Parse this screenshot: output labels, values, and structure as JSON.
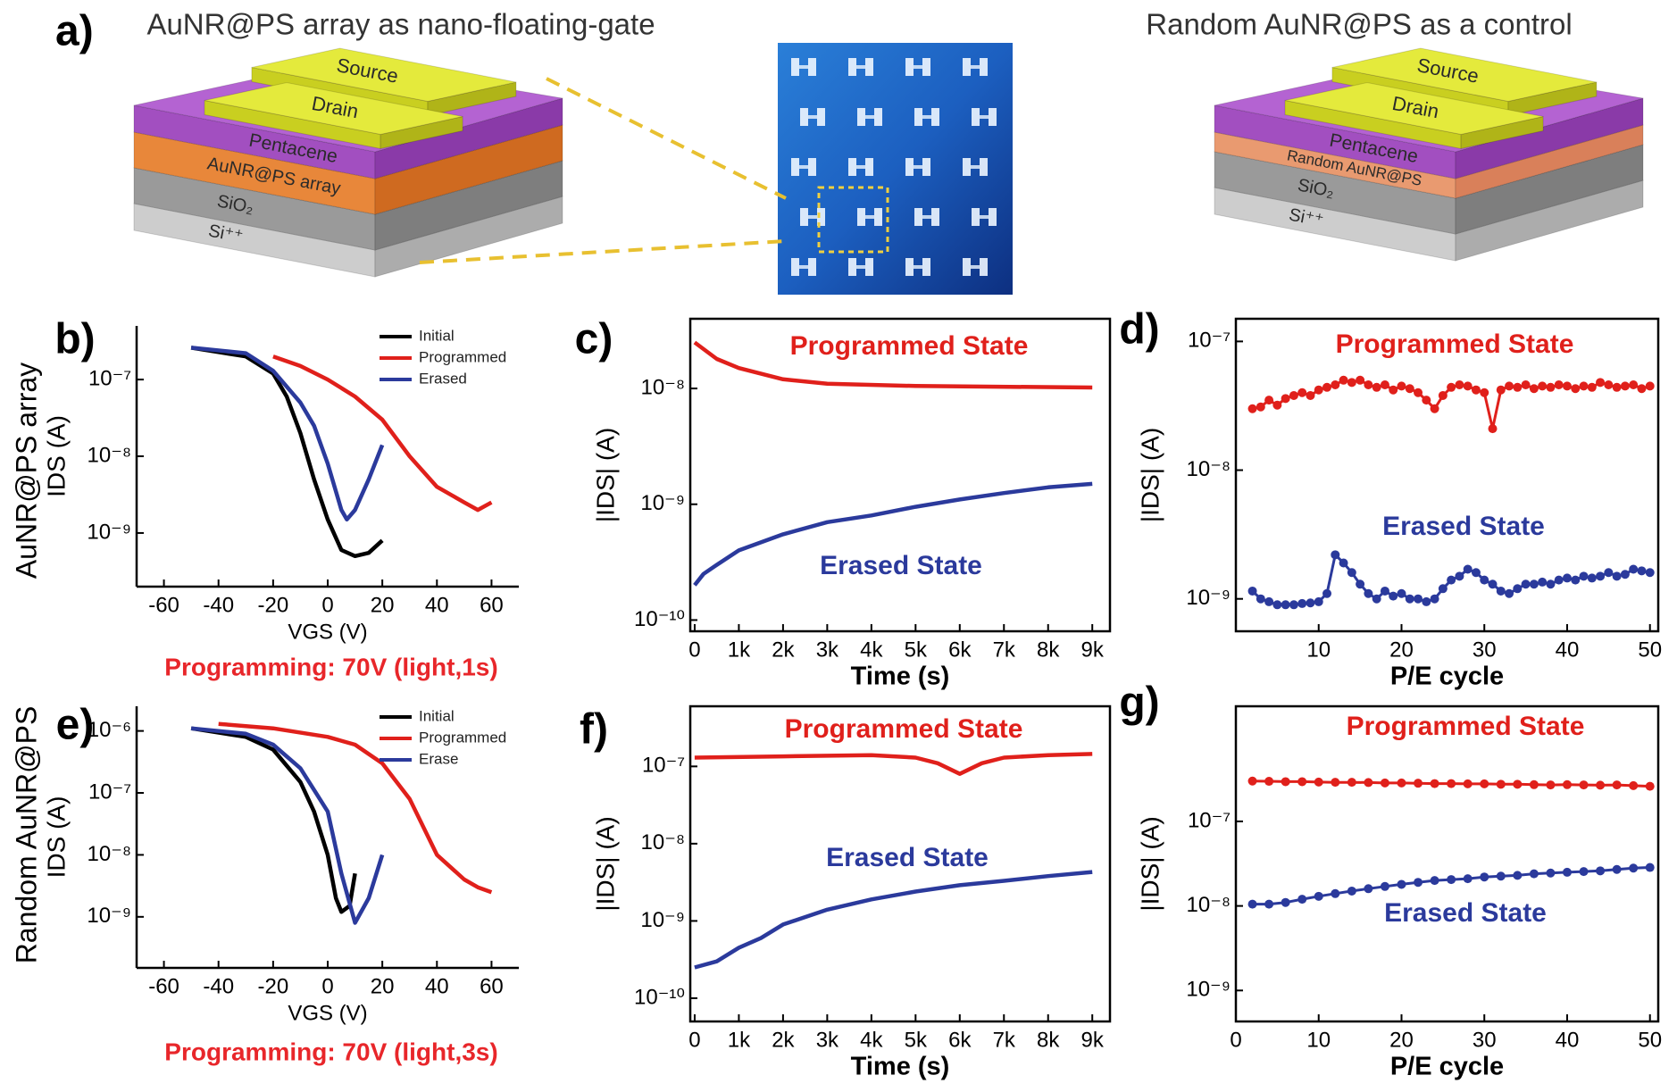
{
  "figure": {
    "panel": "a)",
    "titles": [
      "AuNR@PS array as nano-floating-gate",
      "Random AuNR@PS as a control"
    ],
    "devices": [
      {
        "layers": [
          "Source",
          "Drain",
          "Pentacene",
          "AuNR@PS array",
          "SiO₂",
          "Si⁺⁺"
        ]
      },
      {
        "layers": [
          "Source",
          "Drain",
          "Pentacene",
          "Random AuNR@PS",
          "SiO₂",
          "Si⁺⁺"
        ]
      }
    ],
    "row_labels": [
      "AuNR@PS array",
      "Random AuNR@PS"
    ]
  },
  "chart_data": [
    {
      "type": "line",
      "panel": "b)",
      "xlabel": "VGS (V)",
      "ylabel": "IDS (A)",
      "caption": "Programming: 70V (light,1s)",
      "log_y": true,
      "legend": "upper right",
      "frame": "axes",
      "xlim": [
        -70,
        70
      ],
      "ylim": [
        2e-10,
        5e-07
      ],
      "xticks": [
        -60,
        -40,
        -20,
        0,
        20,
        40,
        60
      ],
      "yticks": [
        {
          "value": 1e-09,
          "label": "10⁻⁹"
        },
        {
          "value": 1e-08,
          "label": "10⁻⁸"
        },
        {
          "value": 1e-07,
          "label": "10⁻⁷"
        }
      ],
      "series": [
        {
          "name": "Initial",
          "color": "#000000",
          "x": [
            -50,
            -30,
            -20,
            -15,
            -10,
            -5,
            0,
            5,
            10,
            15,
            20
          ],
          "values": [
            2.6e-07,
            2e-07,
            1.2e-07,
            6e-08,
            2e-08,
            5e-09,
            1.5e-09,
            6e-10,
            5e-10,
            5.5e-10,
            8e-10
          ]
        },
        {
          "name": "Programmed",
          "color": "#e0201b",
          "x": [
            -20,
            -10,
            0,
            10,
            20,
            30,
            40,
            50,
            55,
            60
          ],
          "values": [
            2e-07,
            1.5e-07,
            1e-07,
            6e-08,
            3e-08,
            1e-08,
            4e-09,
            2.5e-09,
            2e-09,
            2.5e-09
          ]
        },
        {
          "name": "Erased",
          "color": "#2b3a9c",
          "x": [
            -50,
            -30,
            -20,
            -10,
            -5,
            0,
            5,
            7,
            10,
            15,
            20
          ],
          "values": [
            2.6e-07,
            2.2e-07,
            1.3e-07,
            5e-08,
            2.5e-08,
            8e-09,
            2e-09,
            1.5e-09,
            2e-09,
            5e-09,
            1.4e-08
          ]
        }
      ]
    },
    {
      "type": "line",
      "panel": "c)",
      "xlabel": "Time (s)",
      "ylabel": "|IDS| (A)",
      "log_y": true,
      "frame": "full",
      "xlim": [
        -100,
        9400
      ],
      "ylim": [
        8e-11,
        4e-08
      ],
      "xticks": [
        0,
        {
          "value": 1000,
          "label": "1k"
        },
        {
          "value": 2000,
          "label": "2k"
        },
        {
          "value": 3000,
          "label": "3k"
        },
        {
          "value": 4000,
          "label": "4k"
        },
        {
          "value": 5000,
          "label": "5k"
        },
        {
          "value": 6000,
          "label": "6k"
        },
        {
          "value": 7000,
          "label": "7k"
        },
        {
          "value": 8000,
          "label": "8k"
        },
        {
          "value": 9000,
          "label": "9k"
        }
      ],
      "yticks": [
        {
          "value": 1e-10,
          "label": "10⁻¹⁰"
        },
        {
          "value": 1e-09,
          "label": "10⁻⁹"
        },
        {
          "value": 1e-08,
          "label": "10⁻⁸"
        }
      ],
      "series": [
        {
          "name": "Programmed State",
          "color": "#e0201b",
          "x": [
            0,
            500,
            1000,
            2000,
            3000,
            5000,
            9000
          ],
          "values": [
            2.5e-08,
            1.8e-08,
            1.5e-08,
            1.2e-08,
            1.1e-08,
            1.05e-08,
            1.02e-08
          ]
        },
        {
          "name": "Erased State",
          "color": "#2b3a9c",
          "x": [
            0,
            200,
            500,
            1000,
            2000,
            3000,
            4000,
            5000,
            6000,
            7000,
            8000,
            9000
          ],
          "values": [
            2e-10,
            2.5e-10,
            3e-10,
            4e-10,
            5.5e-10,
            7e-10,
            8e-10,
            9.5e-10,
            1.1e-09,
            1.25e-09,
            1.4e-09,
            1.5e-09
          ]
        }
      ]
    },
    {
      "type": "line",
      "panel": "d)",
      "xlabel": "P/E cycle",
      "ylabel": "|IDS| (A)",
      "log_y": true,
      "frame": "full",
      "markers": true,
      "xlim": [
        0,
        51
      ],
      "ylim": [
        5.6e-10,
        1.5e-07
      ],
      "xticks": [
        10,
        20,
        30,
        40,
        50
      ],
      "yticks": [
        {
          "value": 1e-09,
          "label": "10⁻⁹"
        },
        {
          "value": 1e-08,
          "label": "10⁻⁸"
        },
        {
          "value": 1e-07,
          "label": "10⁻⁷"
        }
      ],
      "x": [
        2,
        3,
        4,
        5,
        6,
        7,
        8,
        9,
        10,
        11,
        12,
        13,
        14,
        15,
        16,
        17,
        18,
        19,
        20,
        21,
        22,
        23,
        24,
        25,
        26,
        27,
        28,
        29,
        30,
        31,
        32,
        33,
        34,
        35,
        36,
        37,
        38,
        39,
        40,
        41,
        42,
        43,
        44,
        45,
        46,
        47,
        48,
        49,
        50
      ],
      "series": [
        {
          "name": "Programmed State",
          "color": "#e0201b",
          "values": [
            3e-08,
            3.1e-08,
            3.5e-08,
            3.2e-08,
            3.6e-08,
            3.8e-08,
            4e-08,
            3.8e-08,
            4.2e-08,
            4.4e-08,
            4.6e-08,
            5e-08,
            4.8e-08,
            5e-08,
            4.6e-08,
            4.4e-08,
            4.6e-08,
            4.2e-08,
            4.5e-08,
            4.3e-08,
            4e-08,
            3.5e-08,
            3e-08,
            3.8e-08,
            4.4e-08,
            4.6e-08,
            4.5e-08,
            4.2e-08,
            4e-08,
            2.1e-08,
            4.2e-08,
            4.5e-08,
            4.4e-08,
            4.6e-08,
            4.3e-08,
            4.5e-08,
            4.4e-08,
            4.6e-08,
            4.5e-08,
            4.3e-08,
            4.5e-08,
            4.4e-08,
            4.8e-08,
            4.6e-08,
            4.4e-08,
            4.5e-08,
            4.6e-08,
            4.3e-08,
            4.5e-08
          ]
        },
        {
          "name": "Erased State",
          "color": "#2b3a9c",
          "values": [
            1.15e-09,
            1e-09,
            9.5e-10,
            9e-10,
            9e-10,
            9e-10,
            9.2e-10,
            9.3e-10,
            9.5e-10,
            1.1e-09,
            2.2e-09,
            1.9e-09,
            1.6e-09,
            1.3e-09,
            1.1e-09,
            1e-09,
            1.15e-09,
            1.05e-09,
            1.1e-09,
            1e-09,
            1e-09,
            9.5e-10,
            1e-09,
            1.2e-09,
            1.4e-09,
            1.5e-09,
            1.7e-09,
            1.6e-09,
            1.4e-09,
            1.3e-09,
            1.15e-09,
            1.1e-09,
            1.2e-09,
            1.3e-09,
            1.3e-09,
            1.35e-09,
            1.3e-09,
            1.4e-09,
            1.45e-09,
            1.4e-09,
            1.5e-09,
            1.45e-09,
            1.5e-09,
            1.6e-09,
            1.5e-09,
            1.55e-09,
            1.7e-09,
            1.65e-09,
            1.6e-09
          ]
        }
      ]
    },
    {
      "type": "line",
      "panel": "e)",
      "xlabel": "VGS (V)",
      "ylabel": "IDS (A)",
      "caption": "Programming: 70V (light,3s)",
      "log_y": true,
      "legend": "upper right",
      "frame": "axes",
      "xlim": [
        -70,
        70
      ],
      "ylim": [
        1.5e-10,
        2.5e-06
      ],
      "xticks": [
        -60,
        -40,
        -20,
        0,
        20,
        40,
        60
      ],
      "yticks": [
        {
          "value": 1e-09,
          "label": "10⁻⁹"
        },
        {
          "value": 1e-08,
          "label": "10⁻⁸"
        },
        {
          "value": 1e-07,
          "label": "10⁻⁷"
        },
        {
          "value": 1e-06,
          "label": "10⁻⁶"
        }
      ],
      "series": [
        {
          "name": "Initial",
          "color": "#000000",
          "x": [
            -50,
            -30,
            -20,
            -10,
            -5,
            0,
            3,
            5,
            8,
            10
          ],
          "values": [
            1.1e-06,
            8e-07,
            5e-07,
            1.5e-07,
            5e-08,
            1e-08,
            2e-09,
            1.2e-09,
            1.5e-09,
            5e-09
          ]
        },
        {
          "name": "Programmed",
          "color": "#e0201b",
          "x": [
            -40,
            -20,
            0,
            10,
            20,
            30,
            40,
            50,
            55,
            60
          ],
          "values": [
            1.3e-06,
            1.1e-06,
            8e-07,
            6e-07,
            3e-07,
            8e-08,
            1e-08,
            4e-09,
            3e-09,
            2.5e-09
          ]
        },
        {
          "name": "Erase",
          "color": "#2b3a9c",
          "x": [
            -50,
            -30,
            -20,
            -10,
            0,
            5,
            10,
            15,
            20
          ],
          "values": [
            1.1e-06,
            9e-07,
            6e-07,
            2.5e-07,
            5e-08,
            5e-09,
            8e-10,
            2e-09,
            1e-08
          ]
        }
      ]
    },
    {
      "type": "line",
      "panel": "f)",
      "xlabel": "Time (s)",
      "ylabel": "|IDS| (A)",
      "log_y": true,
      "frame": "full",
      "xlim": [
        -100,
        9400
      ],
      "ylim": [
        5e-11,
        6e-07
      ],
      "xticks": [
        0,
        {
          "value": 1000,
          "label": "1k"
        },
        {
          "value": 2000,
          "label": "2k"
        },
        {
          "value": 3000,
          "label": "3k"
        },
        {
          "value": 4000,
          "label": "4k"
        },
        {
          "value": 5000,
          "label": "5k"
        },
        {
          "value": 6000,
          "label": "6k"
        },
        {
          "value": 7000,
          "label": "7k"
        },
        {
          "value": 8000,
          "label": "8k"
        },
        {
          "value": 9000,
          "label": "9k"
        }
      ],
      "yticks": [
        {
          "value": 1e-10,
          "label": "10⁻¹⁰"
        },
        {
          "value": 1e-09,
          "label": "10⁻⁹"
        },
        {
          "value": 1e-08,
          "label": "10⁻⁸"
        },
        {
          "value": 1e-07,
          "label": "10⁻⁷"
        }
      ],
      "series": [
        {
          "name": "Programmed State",
          "color": "#e0201b",
          "x": [
            0,
            2000,
            4000,
            5000,
            5500,
            6000,
            6500,
            7000,
            8000,
            9000
          ],
          "values": [
            1.3e-07,
            1.35e-07,
            1.4e-07,
            1.3e-07,
            1.1e-07,
            8e-08,
            1.1e-07,
            1.3e-07,
            1.4e-07,
            1.45e-07
          ]
        },
        {
          "name": "Erased State",
          "color": "#2b3a9c",
          "x": [
            0,
            500,
            1000,
            1500,
            2000,
            3000,
            4000,
            5000,
            6000,
            7000,
            8000,
            9000
          ],
          "values": [
            2.5e-10,
            3e-10,
            4.5e-10,
            6e-10,
            9e-10,
            1.4e-09,
            1.9e-09,
            2.4e-09,
            2.9e-09,
            3.3e-09,
            3.8e-09,
            4.3e-09
          ]
        }
      ]
    },
    {
      "type": "line",
      "panel": "g)",
      "xlabel": "P/E cycle",
      "ylabel": "|IDS| (A)",
      "log_y": true,
      "frame": "full",
      "markers": true,
      "xlim": [
        0,
        51
      ],
      "ylim": [
        4.3e-10,
        2.3e-06
      ],
      "xticks": [
        0,
        10,
        20,
        30,
        40,
        50
      ],
      "yticks": [
        {
          "value": 1e-09,
          "label": "10⁻⁹"
        },
        {
          "value": 1e-08,
          "label": "10⁻⁸"
        },
        {
          "value": 1e-07,
          "label": "10⁻⁷"
        }
      ],
      "x": [
        2,
        4,
        6,
        8,
        10,
        12,
        14,
        16,
        18,
        20,
        22,
        24,
        26,
        28,
        30,
        32,
        34,
        36,
        38,
        40,
        42,
        44,
        46,
        48,
        50
      ],
      "series": [
        {
          "name": "Programmed State",
          "color": "#e0201b",
          "values": [
            3e-07,
            2.98e-07,
            2.95e-07,
            2.95e-07,
            2.92e-07,
            2.9e-07,
            2.9e-07,
            2.88e-07,
            2.85e-07,
            2.85e-07,
            2.83e-07,
            2.8e-07,
            2.8e-07,
            2.78e-07,
            2.78e-07,
            2.75e-07,
            2.75e-07,
            2.72e-07,
            2.7e-07,
            2.72e-07,
            2.7e-07,
            2.68e-07,
            2.7e-07,
            2.65e-07,
            2.6e-07
          ]
        },
        {
          "name": "Erased State",
          "color": "#2b3a9c",
          "values": [
            1.05e-08,
            1.05e-08,
            1.1e-08,
            1.2e-08,
            1.3e-08,
            1.4e-08,
            1.5e-08,
            1.6e-08,
            1.7e-08,
            1.8e-08,
            1.9e-08,
            2e-08,
            2.05e-08,
            2.1e-08,
            2.2e-08,
            2.25e-08,
            2.3e-08,
            2.4e-08,
            2.45e-08,
            2.5e-08,
            2.55e-08,
            2.6e-08,
            2.7e-08,
            2.8e-08,
            2.85e-08
          ]
        }
      ]
    }
  ]
}
